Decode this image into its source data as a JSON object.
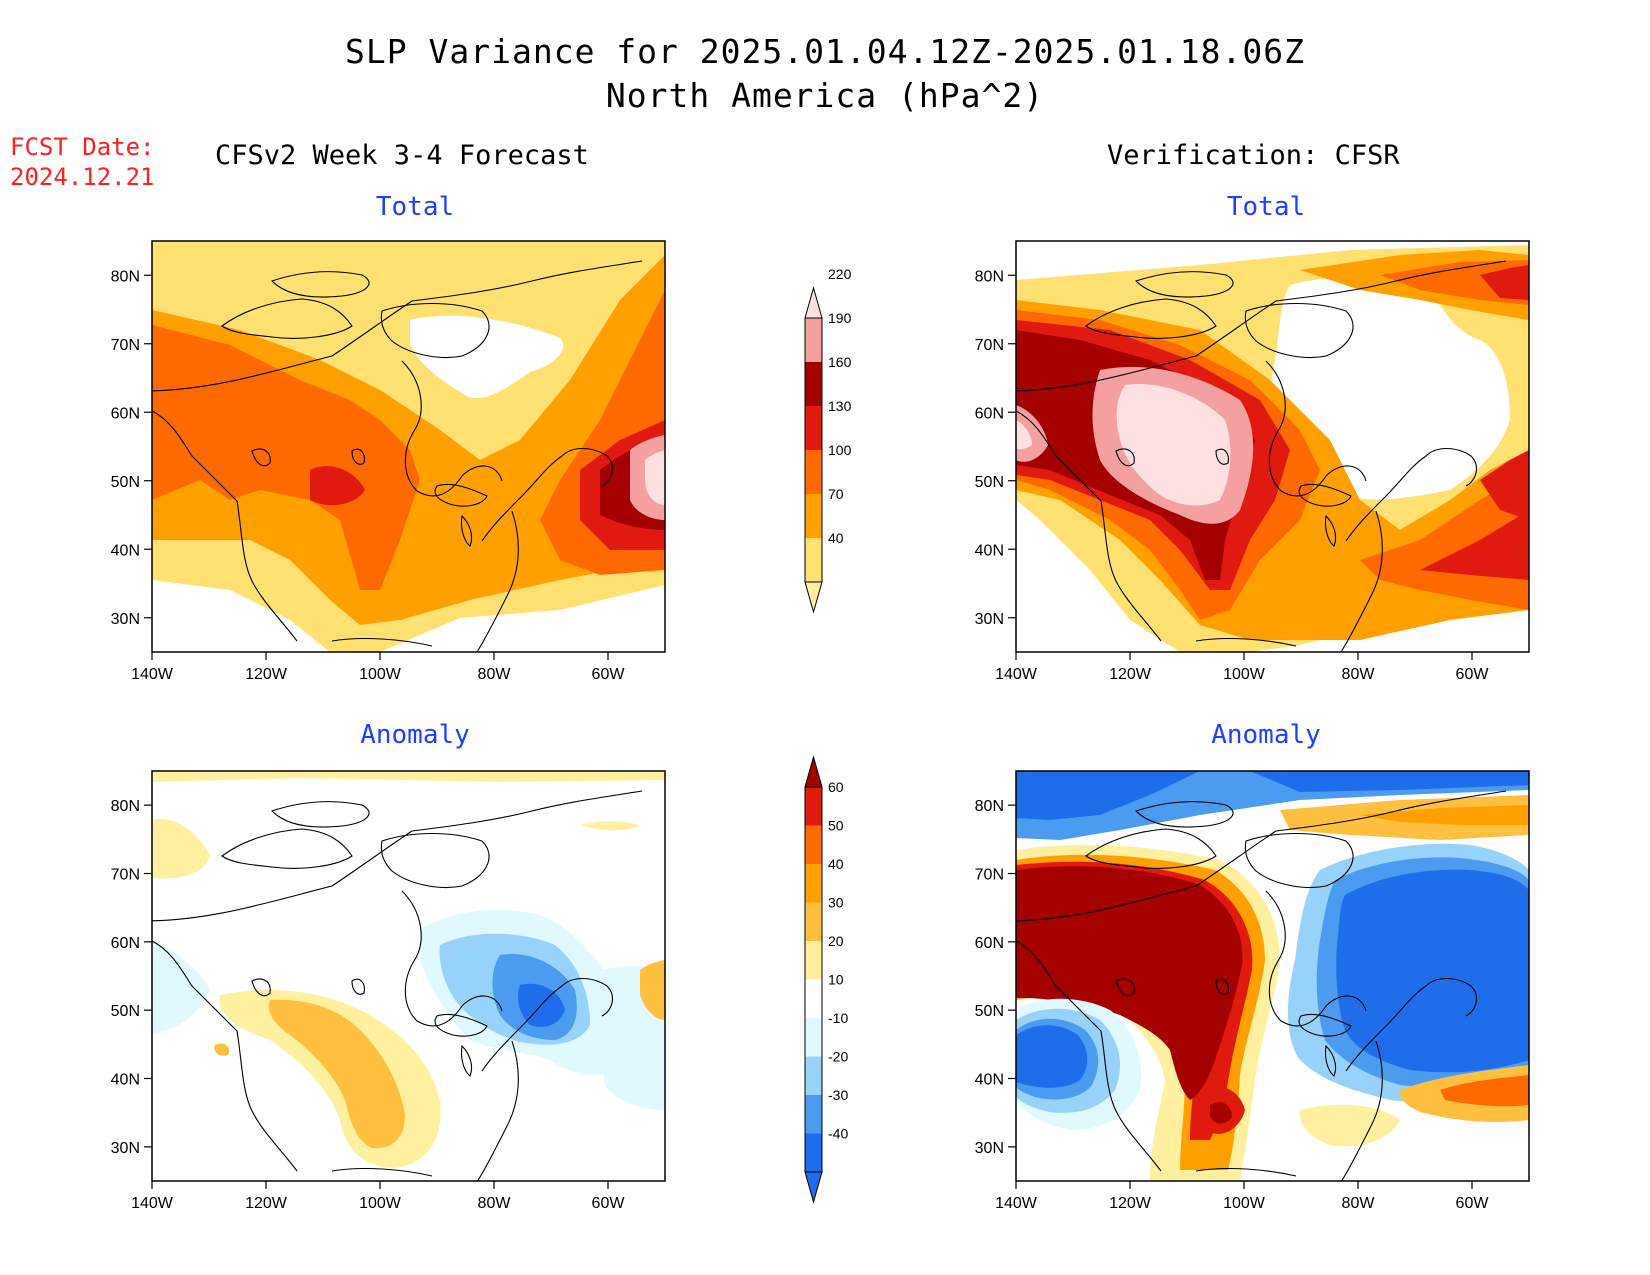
{
  "header": {
    "title": "SLP Variance for 2025.01.04.12Z-2025.01.18.06Z",
    "subtitle": "North America (hPa^2)",
    "fcst_label": "FCST Date:",
    "fcst_date": "2024.12.21",
    "left_column": "CFSv2 Week 3-4 Forecast",
    "right_column": "Verification: CFSR"
  },
  "panels": [
    {
      "id": "fcst-total",
      "title": "Total"
    },
    {
      "id": "obs-total",
      "title": "Total"
    },
    {
      "id": "fcst-anom",
      "title": "Anomaly"
    },
    {
      "id": "obs-anom",
      "title": "Anomaly"
    }
  ],
  "axes": {
    "lon_ticks": [
      "140W",
      "120W",
      "100W",
      "80W",
      "60W"
    ],
    "lat_ticks": [
      "80N",
      "70N",
      "60N",
      "50N",
      "40N",
      "30N"
    ],
    "lon_range": [
      -140,
      -50
    ],
    "lat_range": [
      25,
      85
    ]
  },
  "colorbars": {
    "total": {
      "levels": [
        "40",
        "70",
        "100",
        "130",
        "160",
        "190",
        "220"
      ],
      "colors": [
        "#fff0a0",
        "#ffe070",
        "#ffa000",
        "#ff6a00",
        "#e11a10",
        "#a50000",
        "#f5a0a0",
        "#ffe0e0"
      ]
    },
    "anomaly": {
      "levels": [
        "-40",
        "-30",
        "-20",
        "-10",
        "10",
        "20",
        "30",
        "40",
        "50",
        "60"
      ],
      "colors": [
        "#1e6eeb",
        "#1e6eeb",
        "#4b9bf0",
        "#96d2fa",
        "#e0f8ff",
        "#ffffff",
        "#fff0a0",
        "#ffc040",
        "#ffa000",
        "#ff6a00",
        "#e11a10",
        "#a50000"
      ]
    }
  }
}
